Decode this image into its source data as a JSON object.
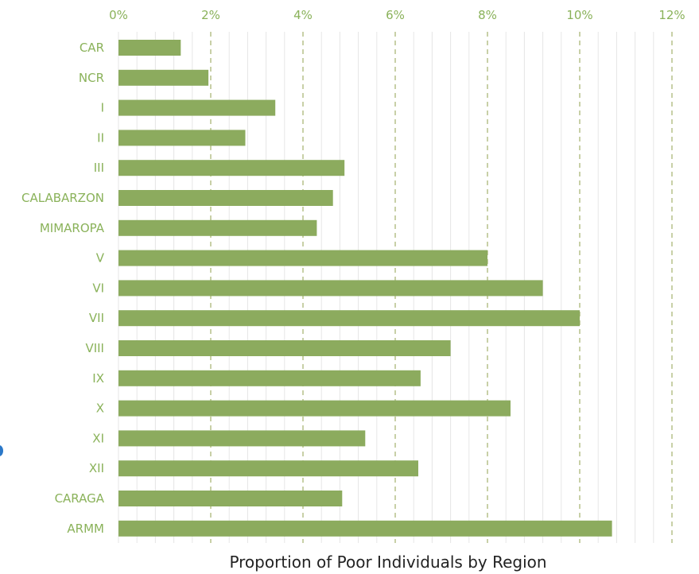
{
  "chart_data": {
    "type": "bar",
    "orientation": "horizontal",
    "categories": [
      "CAR",
      "NCR",
      "I",
      "II",
      "III",
      "CALABARZON",
      "MIMAROPA",
      "V",
      "VI",
      "VII",
      "VIII",
      "IX",
      "X",
      "XI",
      "XII",
      "CARAGA",
      "ARMM"
    ],
    "values": [
      1.35,
      1.95,
      3.4,
      2.75,
      4.9,
      4.65,
      4.3,
      8.0,
      9.2,
      10.0,
      7.2,
      6.55,
      8.5,
      5.35,
      6.5,
      4.85,
      10.7
    ],
    "xlim": [
      0,
      12
    ],
    "xticks": [
      "0%",
      "2%",
      "4%",
      "6%",
      "8%",
      "10%",
      "12%"
    ],
    "xtick_values": [
      0,
      2,
      4,
      6,
      8,
      10,
      12
    ],
    "xlabel": "Proportion of Poor Individuals by Region",
    "axis_position": "top",
    "grid": "vertical",
    "legend": "none",
    "colors": {
      "bar": "#8cab5e",
      "label": "#8ab25a",
      "major_grid": "#b6c08a",
      "minor_grid": "#e6e6e6",
      "title": "#222222"
    }
  }
}
